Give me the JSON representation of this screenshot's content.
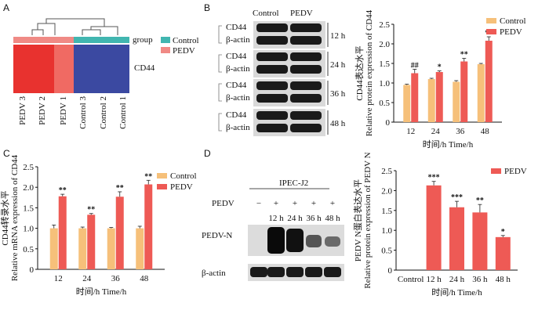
{
  "colors": {
    "control": "#f6c07a",
    "pedv": "#ee5a55",
    "heat_high": "#e8322f",
    "heat_high2": "#f06a63",
    "heat_low": "#3b49a1",
    "group_ctrl": "#41b6b0",
    "group_pedv": "#f08a85",
    "band": "#1a1a1a"
  },
  "panelA": {
    "label": "A",
    "group_title": "group",
    "legend": [
      "Control",
      "PEDV"
    ],
    "row_label": "CD44",
    "columns": [
      "PEDV 3",
      "PEDV 2",
      "PEDV 1",
      "Control 3",
      "Control 2",
      "Control 1"
    ]
  },
  "panelB": {
    "label": "B",
    "blot_headers": [
      "Control",
      "PEDV"
    ],
    "blots": [
      {
        "time": "12 h",
        "proteins": [
          "CD44",
          "β-actin"
        ]
      },
      {
        "time": "24 h",
        "proteins": [
          "CD44",
          "β-actin"
        ]
      },
      {
        "time": "36 h",
        "proteins": [
          "CD44",
          "β-actin"
        ]
      },
      {
        "time": "48 h",
        "proteins": [
          "CD44",
          "β-actin"
        ]
      }
    ]
  },
  "panelC": {
    "label": "C"
  },
  "panelD": {
    "label": "D",
    "cell_line": "IPEC-J2",
    "pedv_row_label": "PEDV",
    "pedv_signs": [
      "−",
      "+",
      "+",
      "+",
      "+"
    ],
    "lane_times": [
      "12 h",
      "24 h",
      "36 h",
      "48 h"
    ],
    "proteins": [
      "PEDV-N",
      "β-actin"
    ]
  },
  "chart_data": [
    {
      "id": "B-chart",
      "type": "bar",
      "categories": [
        "12",
        "24",
        "36",
        "48"
      ],
      "series": [
        {
          "name": "Control",
          "values": [
            0.95,
            1.1,
            1.03,
            1.48
          ]
        },
        {
          "name": "PEDV",
          "values": [
            1.25,
            1.28,
            1.55,
            2.08
          ]
        }
      ],
      "errors": [
        [
          0.02,
          0.02,
          0.03,
          0.02
        ],
        [
          0.1,
          0.03,
          0.08,
          0.1
        ]
      ],
      "significance": [
        "##",
        "*",
        "**",
        "**"
      ],
      "ylabel_cn": "CD44表达水平",
      "ylabel_en": "Relative protein expression of CD44",
      "xlabel": "时间/h  Time/h",
      "ylim": [
        0,
        2.5
      ],
      "yticks": [
        "0",
        "0.5",
        "1.0",
        "1.5",
        "2.0",
        "2.5"
      ],
      "legend": [
        "Control",
        "PEDV"
      ]
    },
    {
      "id": "C-chart",
      "type": "bar",
      "categories": [
        "12",
        "24",
        "36",
        "48"
      ],
      "series": [
        {
          "name": "Control",
          "values": [
            1.0,
            1.0,
            1.0,
            1.0
          ]
        },
        {
          "name": "PEDV",
          "values": [
            1.78,
            1.33,
            1.77,
            2.07
          ]
        }
      ],
      "errors": [
        [
          0.08,
          0.03,
          0.02,
          0.05
        ],
        [
          0.05,
          0.03,
          0.12,
          0.1
        ]
      ],
      "significance": [
        "**",
        "**",
        "**",
        "**"
      ],
      "ylabel_cn": "CD44转录水平",
      "ylabel_en": "Relative mRNA expression of CD44",
      "xlabel": "时间/h  Time/h",
      "ylim": [
        0,
        2.5
      ],
      "yticks": [
        "0",
        "0.5",
        "1.0",
        "1.5",
        "2.0",
        "2.5"
      ],
      "legend": [
        "Control",
        "PEDV"
      ]
    },
    {
      "id": "D-chart",
      "type": "bar",
      "categories": [
        "Control",
        "12 h",
        "24 h",
        "36 h",
        "48 h"
      ],
      "series": [
        {
          "name": "PEDV",
          "values": [
            0,
            2.13,
            1.58,
            1.45,
            0.83
          ]
        }
      ],
      "errors": [
        [
          0,
          0.1,
          0.15,
          0.2,
          0.04
        ]
      ],
      "significance": [
        "",
        "***",
        "***",
        "**",
        "*"
      ],
      "ylabel_cn": "PEDV N蛋白表达水平",
      "ylabel_en": "Relative protein expression of PEDV N",
      "xlabel": "时间/h  Time/h",
      "ylim": [
        0,
        2.5
      ],
      "yticks": [
        "0",
        "0.5",
        "1.0",
        "1.5",
        "2.0",
        "2.5"
      ],
      "legend": [
        "PEDV"
      ]
    }
  ]
}
